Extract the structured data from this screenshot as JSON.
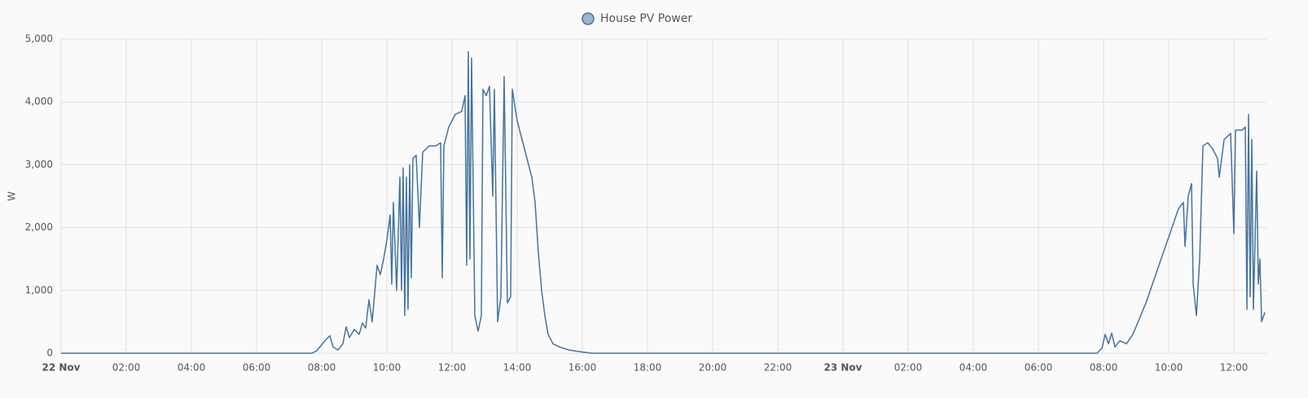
{
  "chart_data": {
    "type": "line",
    "y_label": "W",
    "x": [
      0,
      7.7,
      7.85,
      8.1,
      8.25,
      8.35,
      8.5,
      8.65,
      8.75,
      8.85,
      9.0,
      9.15,
      9.25,
      9.35,
      9.45,
      9.55,
      9.7,
      9.8,
      9.9,
      10.0,
      10.1,
      10.15,
      10.2,
      10.3,
      10.4,
      10.45,
      10.5,
      10.55,
      10.6,
      10.65,
      10.7,
      10.75,
      10.8,
      10.9,
      11.0,
      11.1,
      11.3,
      11.5,
      11.65,
      11.7,
      11.75,
      11.9,
      12.1,
      12.3,
      12.4,
      12.45,
      12.5,
      12.55,
      12.6,
      12.7,
      12.8,
      12.9,
      12.95,
      13.05,
      13.15,
      13.25,
      13.3,
      13.4,
      13.5,
      13.6,
      13.7,
      13.8,
      13.85,
      14.0,
      14.15,
      14.35,
      14.45,
      14.55,
      14.65,
      14.75,
      14.85,
      14.95,
      15.1,
      15.3,
      15.6,
      16.0,
      16.3,
      31.8,
      31.95,
      32.05,
      32.15,
      32.25,
      32.35,
      32.5,
      32.7,
      32.9,
      33.1,
      33.3,
      33.5,
      33.7,
      33.9,
      34.1,
      34.3,
      34.45,
      34.5,
      34.6,
      34.7,
      34.75,
      34.85,
      34.95,
      35.05,
      35.2,
      35.35,
      35.5,
      35.55,
      35.7,
      35.9,
      36.0,
      36.05,
      36.25,
      36.35,
      36.4,
      36.45,
      36.5,
      36.55,
      36.6,
      36.7,
      36.75,
      36.8,
      36.85,
      36.95
    ],
    "series": [
      {
        "name": "House PV Power",
        "color": "#44739e",
        "legend_fill": "#a0b4cb",
        "values": [
          0,
          0,
          40,
          200,
          280,
          100,
          50,
          150,
          420,
          250,
          380,
          300,
          480,
          400,
          850,
          500,
          1400,
          1250,
          1500,
          1800,
          2200,
          1100,
          2400,
          1000,
          2800,
          1000,
          2950,
          600,
          2800,
          700,
          3000,
          1200,
          3100,
          3150,
          2000,
          3200,
          3300,
          3300,
          3350,
          1200,
          3300,
          3600,
          3800,
          3850,
          4100,
          1400,
          4800,
          1500,
          4700,
          600,
          350,
          600,
          4200,
          4100,
          4250,
          2500,
          4200,
          500,
          900,
          4400,
          800,
          900,
          4200,
          3700,
          3400,
          3000,
          2800,
          2400,
          1600,
          1000,
          600,
          300,
          150,
          100,
          50,
          20,
          0,
          0,
          80,
          300,
          150,
          320,
          100,
          200,
          150,
          300,
          550,
          800,
          1100,
          1400,
          1700,
          2000,
          2300,
          2400,
          1700,
          2500,
          2700,
          1100,
          600,
          1500,
          3300,
          3350,
          3250,
          3100,
          2800,
          3400,
          3500,
          1900,
          3550,
          3550,
          3600,
          700,
          3800,
          900,
          3400,
          700,
          2900,
          1100,
          1500,
          500,
          650
        ]
      }
    ],
    "xlim": [
      0,
      37
    ],
    "xticks": [
      {
        "value": 0,
        "label": "22 Nov"
      },
      {
        "value": 2,
        "label": "02:00"
      },
      {
        "value": 4,
        "label": "04:00"
      },
      {
        "value": 6,
        "label": "06:00"
      },
      {
        "value": 8,
        "label": "08:00"
      },
      {
        "value": 10,
        "label": "10:00"
      },
      {
        "value": 12,
        "label": "12:00"
      },
      {
        "value": 14,
        "label": "14:00"
      },
      {
        "value": 16,
        "label": "16:00"
      },
      {
        "value": 18,
        "label": "18:00"
      },
      {
        "value": 20,
        "label": "20:00"
      },
      {
        "value": 22,
        "label": "22:00"
      },
      {
        "value": 24,
        "label": "23 Nov"
      },
      {
        "value": 26,
        "label": "02:00"
      },
      {
        "value": 28,
        "label": "04:00"
      },
      {
        "value": 30,
        "label": "06:00"
      },
      {
        "value": 32,
        "label": "08:00"
      },
      {
        "value": 34,
        "label": "10:00"
      },
      {
        "value": 36,
        "label": "12:00"
      }
    ],
    "ylim": [
      0,
      5000
    ],
    "yticks": [
      0,
      {
        "value": 1000,
        "label": "1,000"
      },
      {
        "value": 2000,
        "label": "2,000"
      },
      {
        "value": 3000,
        "label": "3,000"
      },
      {
        "value": 4000,
        "label": "4,000"
      },
      {
        "value": 5000,
        "label": "5,000"
      }
    ],
    "grid": true
  }
}
